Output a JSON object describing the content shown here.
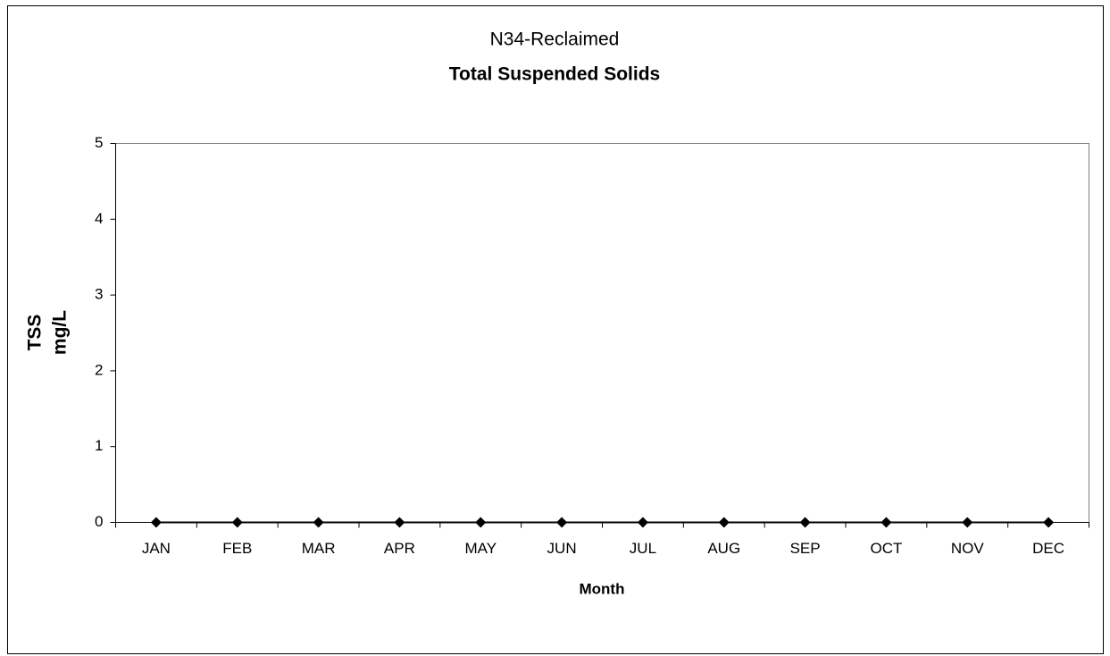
{
  "chart_data": {
    "type": "line",
    "title_lines": [
      "N34-Reclaimed",
      "Total Suspended Solids"
    ],
    "y_label": [
      "TSS",
      "mg/L"
    ],
    "x_label": "Month",
    "categories": [
      "JAN",
      "FEB",
      "MAR",
      "APR",
      "MAY",
      "JUN",
      "JUL",
      "AUG",
      "SEP",
      "OCT",
      "NOV",
      "DEC"
    ],
    "values": [
      0,
      0,
      0,
      0,
      0,
      0,
      0,
      0,
      0,
      0,
      0,
      0
    ],
    "color": "#000000",
    "marker": "diamond",
    "ylim": [
      0,
      5
    ],
    "yticks": [
      0,
      1,
      2,
      3,
      4,
      5
    ],
    "grid": false
  }
}
